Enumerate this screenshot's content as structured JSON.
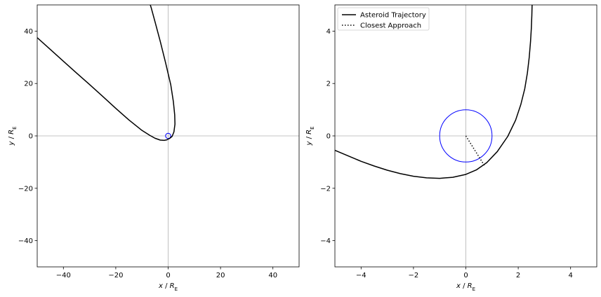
{
  "chart_data": [
    {
      "type": "line",
      "panel": "left",
      "xlabel": "x / R_E",
      "ylabel": "y / R_E",
      "xlim": [
        -50,
        50
      ],
      "ylim": [
        -50,
        50
      ],
      "xticks": [
        -40,
        -20,
        0,
        20,
        40
      ],
      "yticks": [
        -40,
        -20,
        0,
        20,
        40
      ],
      "tick_labels_x": [
        "−40",
        "−20",
        "0",
        "20",
        "40"
      ],
      "tick_labels_y": [
        "−40",
        "−20",
        "0",
        "20",
        "40"
      ],
      "grid": "zero-lines only",
      "legend": null,
      "series": [
        {
          "role": "trajectory",
          "color": "#000000",
          "style": "solid",
          "x": [
            -50,
            -45,
            -40,
            -35,
            -30,
            -25,
            -20,
            -15,
            -10,
            -7,
            -5,
            -3,
            -1.5,
            -0.5,
            0.5,
            1.5,
            2.2,
            2.6,
            2.5,
            2.0,
            1.0,
            -1.0,
            -3.0,
            -5.0,
            -6.5,
            -10
          ],
          "y": [
            37.5,
            33.0,
            28.5,
            24.0,
            19.6,
            15.1,
            10.5,
            6.1,
            2.1,
            0.2,
            -0.9,
            -1.6,
            -1.7,
            -1.5,
            -1.0,
            -0.2,
            1.5,
            4.5,
            8.0,
            13.0,
            19.5,
            28.0,
            36.0,
            43.5,
            49.0,
            60
          ]
        }
      ],
      "earth_circle": {
        "center": [
          0,
          0
        ],
        "radius": 1,
        "color": "#0000ff"
      }
    },
    {
      "type": "line",
      "panel": "right",
      "xlabel": "x / R_E",
      "ylabel": "y / R_E",
      "xlim": [
        -5,
        5
      ],
      "ylim": [
        -5,
        5
      ],
      "xticks": [
        -4,
        -2,
        0,
        2,
        4
      ],
      "yticks": [
        -4,
        -2,
        0,
        2,
        4
      ],
      "tick_labels_x": [
        "−4",
        "−2",
        "0",
        "2",
        "4"
      ],
      "tick_labels_y": [
        "−4",
        "−2",
        "0",
        "2",
        "4"
      ],
      "grid": "zero-lines only",
      "legend": "top-left",
      "series": [
        {
          "name": "Asteroid Trajectory",
          "color": "#000000",
          "style": "solid",
          "x": [
            -5.0,
            -4.5,
            -4.0,
            -3.5,
            -3.0,
            -2.5,
            -2.0,
            -1.5,
            -1.0,
            -0.5,
            0.0,
            0.4,
            0.8,
            1.2,
            1.6,
            1.9,
            2.1,
            2.25,
            2.35,
            2.42,
            2.47,
            2.5,
            2.52,
            2.53,
            2.52,
            2.5
          ],
          "y": [
            -0.55,
            -0.76,
            -0.97,
            -1.15,
            -1.31,
            -1.44,
            -1.54,
            -1.6,
            -1.62,
            -1.58,
            -1.47,
            -1.3,
            -1.02,
            -0.6,
            -0.02,
            0.6,
            1.2,
            1.8,
            2.4,
            3.0,
            3.6,
            4.1,
            4.6,
            5.0,
            5.3,
            5.6
          ]
        },
        {
          "name": "Closest Approach",
          "color": "#000000",
          "style": "dotted",
          "x": [
            0,
            0.72
          ],
          "y": [
            0,
            -1.15
          ]
        }
      ],
      "earth_circle": {
        "center": [
          0,
          0
        ],
        "radius": 1,
        "color": "#0000ff"
      }
    }
  ]
}
